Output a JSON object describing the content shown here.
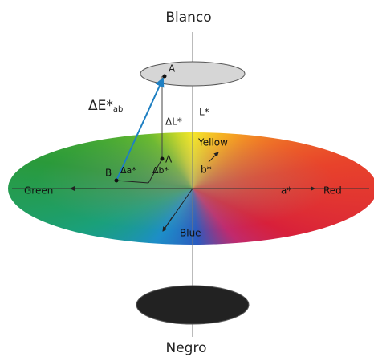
{
  "title_top": "Blanco",
  "title_bottom": "Negro",
  "labels": {
    "point_a_top": "A",
    "delta_e": {
      "main": "ΔE*",
      "sub": "ab"
    },
    "delta_l": "ΔL*",
    "l_axis": "L*",
    "yellow": "Yellow",
    "point_b": "B",
    "delta_a": "Δa*",
    "point_a_low": "A",
    "delta_b": "Δb*",
    "b_axis": "b*",
    "green": "Green",
    "a_axis": "a*",
    "red": "Red",
    "blue": "Blue"
  }
}
